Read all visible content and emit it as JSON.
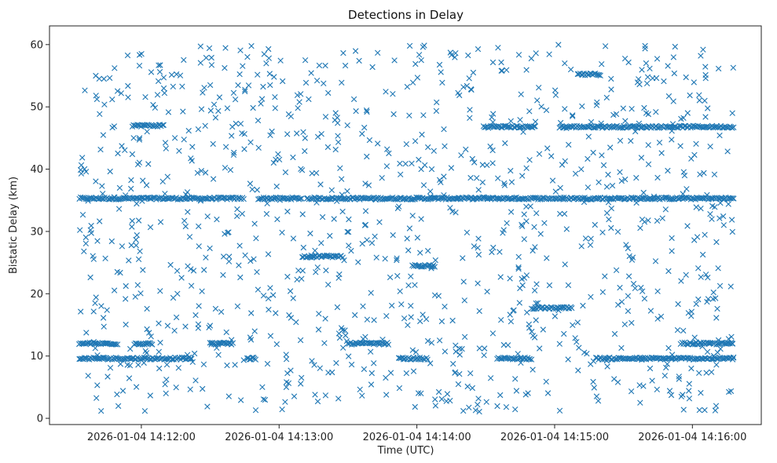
{
  "chart_data": {
    "type": "scatter",
    "title": "Detections in Delay",
    "xlabel": "Time (UTC)",
    "ylabel": "Bistatic Delay (km)",
    "marker": "x",
    "color": "#1f77b4",
    "grid": false,
    "legend": "none",
    "x_unit": "UTC datetime",
    "xlim": [
      "2026-01-04 14:11:20",
      "2026-01-04 14:16:30"
    ],
    "ylim": [
      -1,
      63
    ],
    "x_ticks": [
      "2026-01-04 14:12:00",
      "2026-01-04 14:13:00",
      "2026-01-04 14:14:00",
      "2026-01-04 14:15:00",
      "2026-01-04 14:16:00"
    ],
    "y_ticks": [
      "0",
      "10",
      "20",
      "30",
      "40",
      "50",
      "60"
    ],
    "time_range": [
      "2026-01-04 14:11:33",
      "2026-01-04 14:16:18"
    ],
    "bands": [
      {
        "y": 35.3,
        "segments": [
          [
            "2026-01-04 14:11:33",
            "2026-01-04 14:12:45"
          ],
          [
            "2026-01-04 14:12:51",
            "2026-01-04 14:13:10"
          ],
          [
            "2026-01-04 14:13:12",
            "2026-01-04 14:16:18"
          ]
        ]
      },
      {
        "y": 46.8,
        "segments": [
          [
            "2026-01-04 14:14:29",
            "2026-01-04 14:14:52"
          ],
          [
            "2026-01-04 14:15:02",
            "2026-01-04 14:16:18"
          ]
        ]
      },
      {
        "y": 47.0,
        "segments": [
          [
            "2026-01-04 14:11:56",
            "2026-01-04 14:12:10"
          ]
        ]
      },
      {
        "y": 9.6,
        "segments": [
          [
            "2026-01-04 14:11:33",
            "2026-01-04 14:12:22"
          ],
          [
            "2026-01-04 14:12:46",
            "2026-01-04 14:12:50"
          ],
          [
            "2026-01-04 14:13:52",
            "2026-01-04 14:14:05"
          ],
          [
            "2026-01-04 14:14:35",
            "2026-01-04 14:14:50"
          ],
          [
            "2026-01-04 14:15:18",
            "2026-01-04 14:16:18"
          ]
        ]
      },
      {
        "y": 12.0,
        "segments": [
          [
            "2026-01-04 14:11:33",
            "2026-01-04 14:11:50"
          ],
          [
            "2026-01-04 14:11:57",
            "2026-01-04 14:12:05"
          ],
          [
            "2026-01-04 14:12:30",
            "2026-01-04 14:12:40"
          ],
          [
            "2026-01-04 14:13:30",
            "2026-01-04 14:13:48"
          ],
          [
            "2026-01-04 14:15:55",
            "2026-01-04 14:16:18"
          ]
        ]
      },
      {
        "y": 24.5,
        "segments": [
          [
            "2026-01-04 14:13:58",
            "2026-01-04 14:14:08"
          ]
        ]
      },
      {
        "y": 26.0,
        "segments": [
          [
            "2026-01-04 14:13:10",
            "2026-01-04 14:13:28"
          ]
        ]
      },
      {
        "y": 17.7,
        "segments": [
          [
            "2026-01-04 14:14:50",
            "2026-01-04 14:15:08"
          ]
        ]
      },
      {
        "y": 55.2,
        "segments": [
          [
            "2026-01-04 14:15:10",
            "2026-01-04 14:15:20"
          ]
        ]
      }
    ],
    "scatter": {
      "count": 1100,
      "y_range": [
        1,
        60
      ],
      "distribution": "uniform over time range"
    }
  }
}
